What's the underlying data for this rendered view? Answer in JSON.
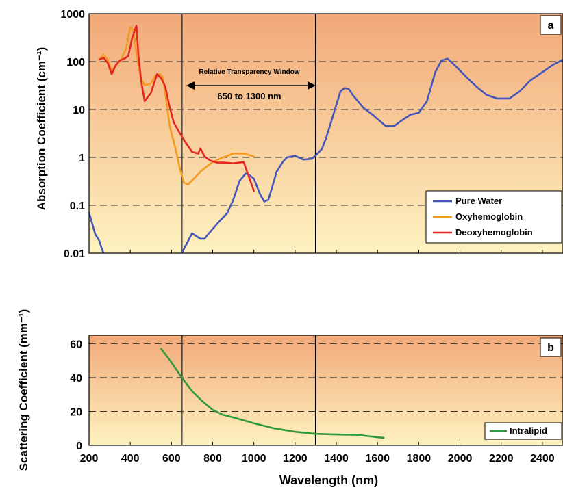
{
  "colors": {
    "water": "#4455bb",
    "oxy": "#f39a1e",
    "deoxy": "#e3261f",
    "intralipid": "#2f9a3a",
    "bg_top": "#f2a878",
    "bg_bottom": "#fdf2c0"
  },
  "chart_data": [
    {
      "type": "line",
      "panel_label": "a",
      "ylabel": "Absorption Coefficient (cm⁻¹)",
      "yscale": "log",
      "ylim": [
        0.01,
        1000
      ],
      "xlim": [
        200,
        2500
      ],
      "y_ticks": [
        "0.01",
        "0.1",
        "1",
        "10",
        "100",
        "1000"
      ],
      "y_tick_values": [
        0.01,
        0.1,
        1,
        10,
        100,
        1000
      ],
      "grid": "dashed horizontal",
      "legend_position": "bottom-right",
      "vertical_lines_x": [
        650,
        1300
      ],
      "annotation": {
        "title": "Relative Transparency Window",
        "range": "650 to 1300 nm"
      },
      "series": [
        {
          "name": "Pure Water",
          "color_key": "water",
          "x": [
            200,
            230,
            250,
            260,
            270,
            650,
            700,
            740,
            760,
            800,
            830,
            870,
            900,
            930,
            960,
            980,
            1000,
            1030,
            1050,
            1070,
            1090,
            1110,
            1140,
            1160,
            1200,
            1240,
            1280,
            1300,
            1330,
            1350,
            1380,
            1420,
            1440,
            1460,
            1480,
            1530,
            1580,
            1640,
            1680,
            1720,
            1760,
            1800,
            1840,
            1880,
            1910,
            1940,
            1980,
            2030,
            2080,
            2130,
            2180,
            2240,
            2290,
            2340,
            2400,
            2450,
            2500
          ],
          "y": [
            0.07,
            0.025,
            0.018,
            0.013,
            0.01,
            0.01,
            0.026,
            0.02,
            0.02,
            0.032,
            0.045,
            0.068,
            0.13,
            0.32,
            0.46,
            0.42,
            0.36,
            0.17,
            0.12,
            0.13,
            0.25,
            0.5,
            0.8,
            1.0,
            1.08,
            0.9,
            0.93,
            1.1,
            1.5,
            2.5,
            6.5,
            24,
            28,
            27,
            20,
            11,
            7.5,
            4.5,
            4.5,
            6,
            7.8,
            8.5,
            15,
            60,
            105,
            115,
            80,
            48,
            30,
            20,
            17,
            17,
            24,
            40,
            60,
            85,
            110
          ]
        },
        {
          "name": "Oxyhemoglobin",
          "color_key": "oxy",
          "x": [
            250,
            270,
            290,
            310,
            330,
            360,
            380,
            400,
            415,
            430,
            450,
            470,
            500,
            520,
            545,
            560,
            575,
            590,
            600,
            620,
            640,
            660,
            680,
            700,
            750,
            800,
            850,
            900,
            950,
            1000
          ],
          "y": [
            110,
            140,
            110,
            65,
            80,
            120,
            190,
            520,
            450,
            150,
            45,
            32,
            35,
            50,
            55,
            45,
            15,
            5,
            3.2,
            1.5,
            0.6,
            0.3,
            0.27,
            0.33,
            0.55,
            0.8,
            1.0,
            1.2,
            1.2,
            1.05
          ]
        },
        {
          "name": "Deoxyhemoglobin",
          "color_key": "deoxy",
          "x": [
            250,
            270,
            290,
            310,
            330,
            350,
            370,
            390,
            410,
            430,
            440,
            455,
            470,
            500,
            530,
            550,
            570,
            590,
            610,
            640,
            670,
            700,
            730,
            740,
            760,
            790,
            820,
            850,
            900,
            950,
            1000
          ],
          "y": [
            110,
            120,
            95,
            55,
            85,
            105,
            115,
            130,
            320,
            560,
            130,
            35,
            15,
            22,
            55,
            45,
            30,
            12,
            5.5,
            3.2,
            2.0,
            1.3,
            1.2,
            1.55,
            1.05,
            0.85,
            0.78,
            0.78,
            0.75,
            0.8,
            0.2
          ]
        }
      ]
    },
    {
      "type": "line",
      "panel_label": "b",
      "ylabel": "Scattering Coefficient (mm⁻¹)",
      "xlabel": "Wavelength (nm)",
      "ylim": [
        0,
        65
      ],
      "xlim": [
        200,
        2500
      ],
      "y_ticks": [
        "0",
        "20",
        "40",
        "60"
      ],
      "y_tick_values": [
        0,
        20,
        40,
        60
      ],
      "x_ticks": [
        "200",
        "400",
        "600",
        "800",
        "1000",
        "1200",
        "1400",
        "1600",
        "1800",
        "2000",
        "2200",
        "2400"
      ],
      "x_tick_values": [
        200,
        400,
        600,
        800,
        1000,
        1200,
        1400,
        1600,
        1800,
        2000,
        2200,
        2400
      ],
      "grid": "dashed horizontal",
      "legend_position": "bottom-right",
      "vertical_lines_x": [
        650,
        1300
      ],
      "series": [
        {
          "name": "Intralipid",
          "color_key": "intralipid",
          "x": [
            550,
            600,
            650,
            700,
            750,
            800,
            850,
            900,
            1000,
            1100,
            1200,
            1300,
            1400,
            1500,
            1600,
            1630
          ],
          "y": [
            57,
            49,
            40,
            32,
            26,
            21,
            18,
            16.5,
            13,
            10,
            8,
            6.8,
            6.4,
            6.2,
            4.8,
            4.5
          ]
        }
      ]
    }
  ]
}
